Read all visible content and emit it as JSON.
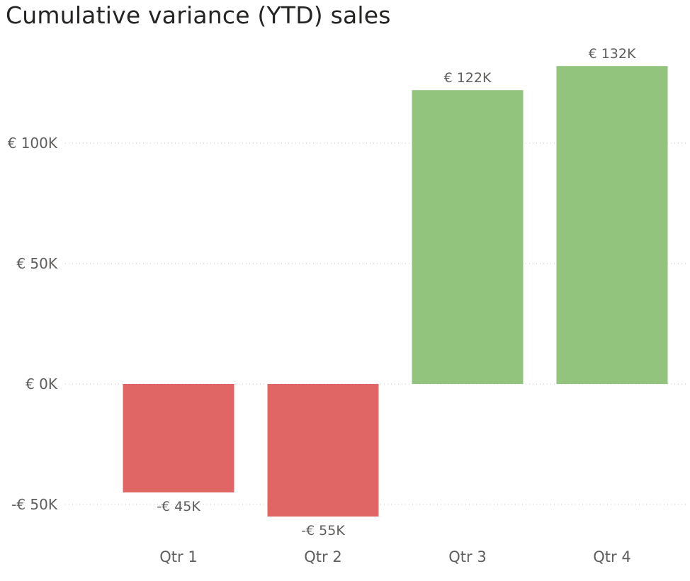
{
  "chart_data": {
    "type": "bar",
    "title": "Cumulative variance (YTD) sales",
    "categories": [
      "Qtr 1",
      "Qtr 2",
      "Qtr 3",
      "Qtr 4"
    ],
    "values": [
      -45000,
      -55000,
      122000,
      132000
    ],
    "value_labels": [
      "-€ 45K",
      "-€ 55K",
      "€ 122K",
      "€ 132K"
    ],
    "yticks": [
      {
        "value": -50000,
        "label": "-€ 50K"
      },
      {
        "value": 0,
        "label": "€ 0K"
      },
      {
        "value": 50000,
        "label": "€ 50K"
      },
      {
        "value": 100000,
        "label": "€ 100K"
      }
    ],
    "ylim": [
      -65000,
      140000
    ],
    "xlabel": "",
    "ylabel": "",
    "grid": true,
    "legend": "none",
    "colors": {
      "positive": "#93c47d",
      "negative": "#e06666"
    }
  }
}
